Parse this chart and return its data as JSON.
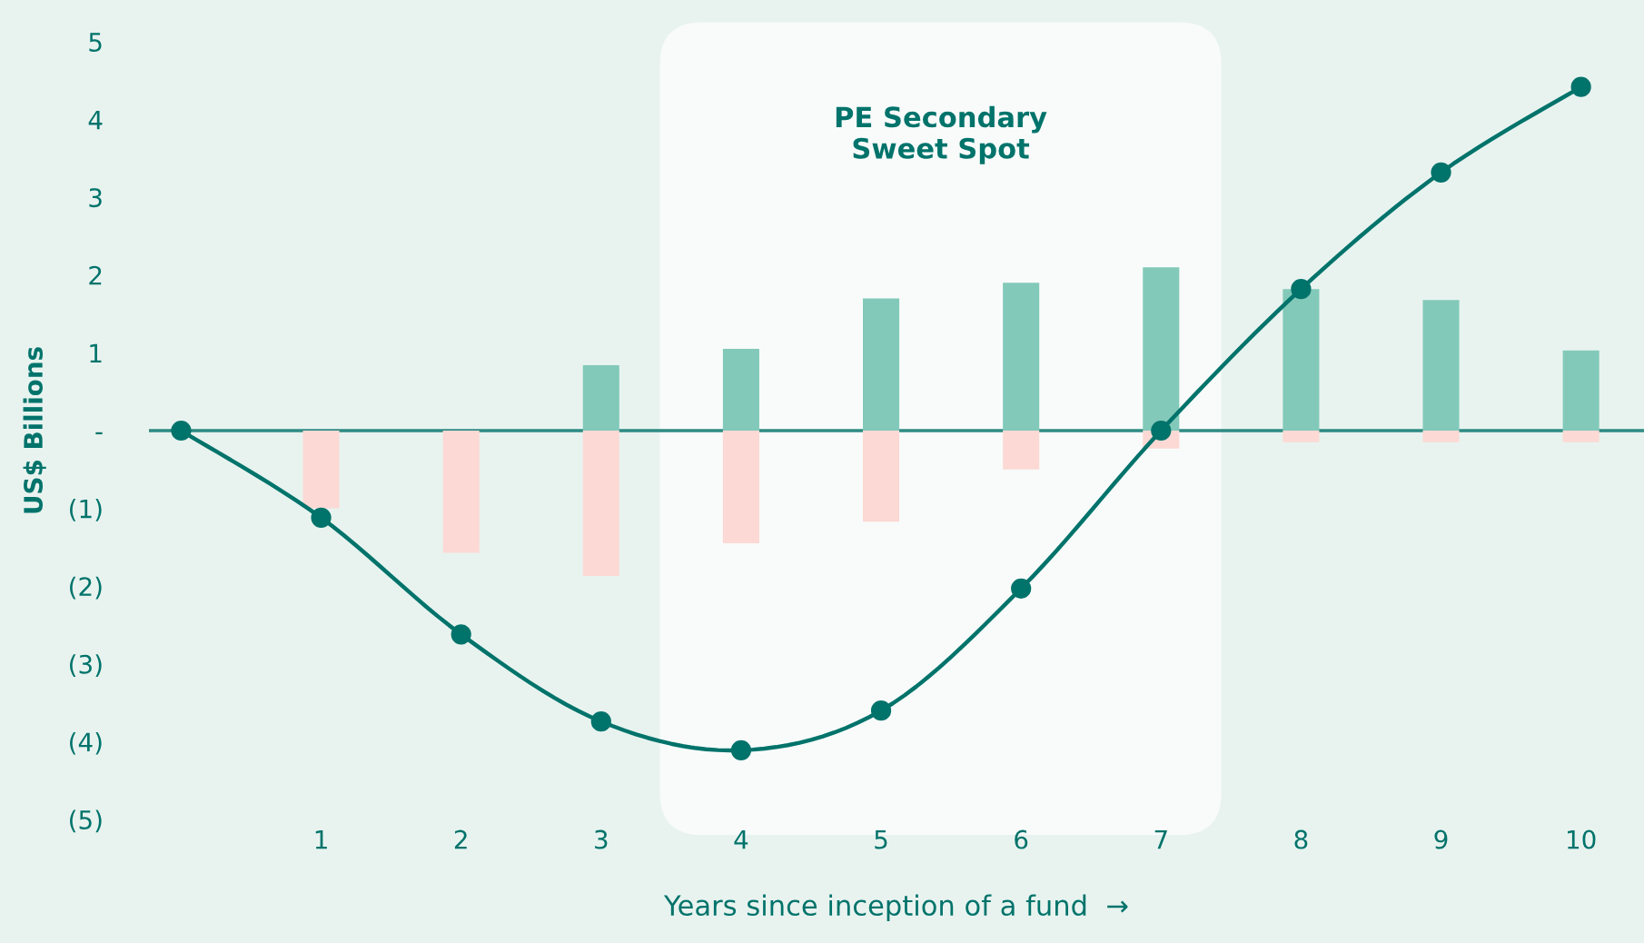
{
  "chart_data": {
    "type": "bar",
    "stacked": true,
    "xlabel": "Years since inception of a fund  →",
    "ylabel": "US$ Billions",
    "x": [
      1,
      2,
      3,
      4,
      5,
      6,
      7,
      8,
      9,
      10
    ],
    "series": [
      {
        "color": "#82c9b9",
        "values": [
          0,
          0,
          0.84,
          1.05,
          1.7,
          1.9,
          2.1,
          1.82,
          1.68,
          1.03
        ]
      },
      {
        "color": "#fcd9d4",
        "values": [
          -1.0,
          -1.57,
          -1.87,
          -1.45,
          -1.17,
          -0.5,
          -0.23,
          -0.15,
          -0.15,
          -0.15
        ]
      },
      {
        "type": "line",
        "color": "#00736b",
        "marker": "circle",
        "x": [
          0,
          1,
          2,
          3,
          4,
          5,
          6,
          7,
          8,
          9,
          10
        ],
        "values": [
          0,
          -1.12,
          -2.62,
          -3.74,
          -4.11,
          -3.6,
          -2.03,
          0,
          1.82,
          3.32,
          4.42
        ]
      }
    ],
    "xlim": [
      -0.23,
      10.45
    ],
    "xticks": [
      1,
      2,
      3,
      4,
      5,
      6,
      7,
      8,
      9,
      10
    ],
    "ylim": [
      -5,
      5
    ],
    "yticks": [
      {
        "value": 5,
        "label": "5"
      },
      {
        "value": 4,
        "label": "4"
      },
      {
        "value": 3,
        "label": "3"
      },
      {
        "value": 2,
        "label": "2"
      },
      {
        "value": 1,
        "label": "1"
      },
      {
        "value": 0,
        "label": "-"
      },
      {
        "value": -1,
        "label": "(1)"
      },
      {
        "value": -2,
        "label": "(2)"
      },
      {
        "value": -3,
        "label": "(3)"
      },
      {
        "value": -4,
        "label": "(4)"
      },
      {
        "value": -5,
        "label": "(5)"
      }
    ],
    "ref_lines": [
      {
        "axis": "y",
        "value": 0,
        "color": "#2e8a83"
      }
    ],
    "bands": [
      {
        "axis": "x",
        "from": 3.42,
        "to": 7.43,
        "label": "PE Secondary\nSweet Spot",
        "color": "#f8fbfa"
      }
    ],
    "grid": false,
    "legend": false
  }
}
